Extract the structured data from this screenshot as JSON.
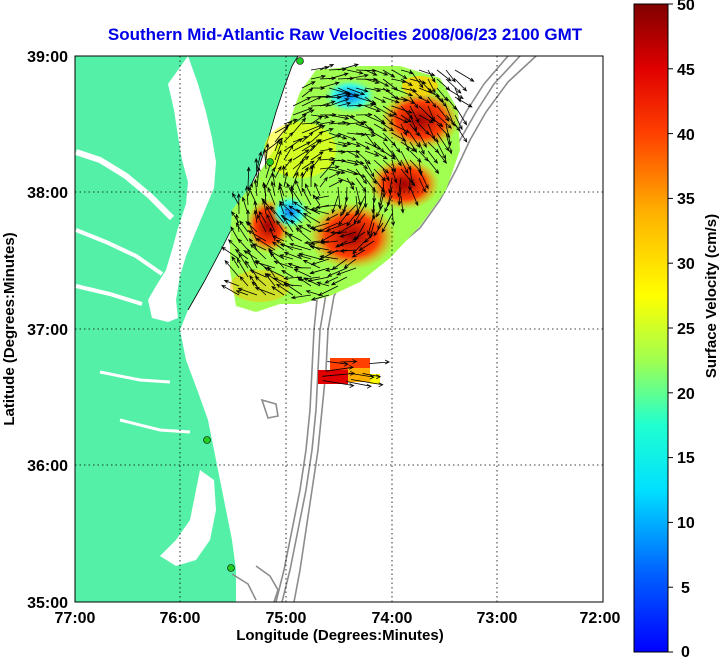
{
  "title": "Southern Mid-Atlantic Raw Velocities 2008/06/23 2100 GMT",
  "xlabel": "Longitude (Degrees:Minutes)",
  "ylabel": "Latitude (Degrees:Minutes)",
  "x_ticks": [
    "77:00",
    "76:00",
    "75:00",
    "74:00",
    "73:00",
    "72:00"
  ],
  "y_ticks": [
    "39:00",
    "38:00",
    "37:00",
    "36:00",
    "35:00"
  ],
  "colorbar": {
    "label": "Surface Velocity (cm/s)",
    "ticks": [
      "50",
      "45",
      "40",
      "35",
      "30",
      "25",
      "20",
      "15",
      "10",
      "5",
      "0"
    ],
    "range": [
      0,
      50
    ]
  },
  "colors": {
    "land": "#55f0a8",
    "water": "#ffffff",
    "bathymetry": "#8c8c8c",
    "grid": "#000000",
    "stations": "#22cc22"
  },
  "extent": {
    "lon": [
      -77,
      -72
    ],
    "lat": [
      35,
      39
    ]
  }
}
